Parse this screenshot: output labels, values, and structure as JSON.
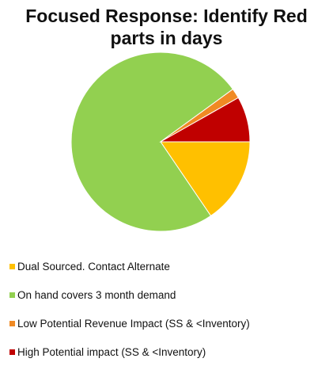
{
  "chart_data": {
    "type": "pie",
    "title_lines": [
      "Focused Response: Identify Red",
      "parts in days"
    ],
    "slices": [
      {
        "label": "Dual Sourced. Contact Alternate",
        "value": 15.5,
        "color": "#ffc000"
      },
      {
        "label": "On hand covers 3 month demand",
        "value": 74.5,
        "color": "#92d050"
      },
      {
        "label": "Low Potential Revenue Impact (SS & <Inventory)",
        "value": 1.8,
        "color": "#f08a24"
      },
      {
        "label": "High Potential impact (SS & <Inventory)",
        "value": 8.2,
        "color": "#c00000"
      }
    ],
    "start_direction": "east",
    "draw_order": [
      0,
      1,
      2,
      3
    ],
    "slice_outline_color": "#ffffff",
    "legend_position": "bottom-left"
  }
}
